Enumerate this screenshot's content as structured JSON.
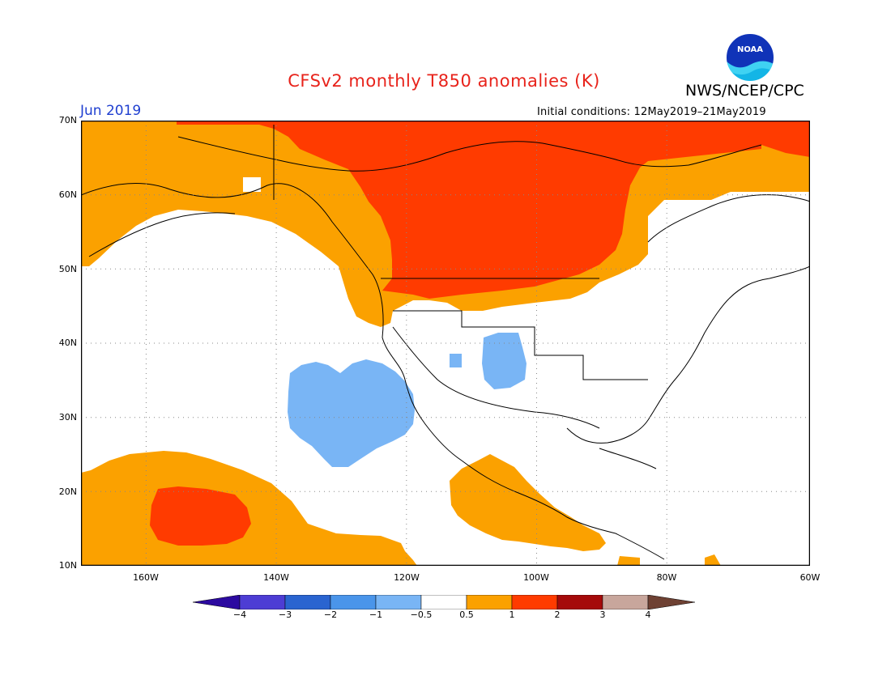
{
  "header": {
    "title": "CFSv2 monthly T850 anomalies (K)",
    "period": "Jun 2019",
    "agency": "NWS/NCEP/CPC",
    "initial_conditions": "Initial conditions: 12May2019–21May2019",
    "logo_text": "NOAA"
  },
  "map": {
    "lat_labels": [
      "70N",
      "60N",
      "50N",
      "40N",
      "30N",
      "20N",
      "10N"
    ],
    "lon_labels": [
      "160W",
      "140W",
      "120W",
      "100W",
      "80W",
      "60W"
    ],
    "extent": {
      "lon": [
        -172,
        -60
      ],
      "lat": [
        10,
        70
      ]
    }
  },
  "colorbar": {
    "labels": [
      "-4",
      "-3",
      "-2",
      "-1",
      "-0.5",
      "0.5",
      "1",
      "2",
      "3",
      "4"
    ],
    "colors": [
      "#2c0aa0",
      "#4d3dd4",
      "#2a64d0",
      "#4a95ea",
      "#79b5f5",
      "#ffffff",
      "#fba100",
      "#ff3b00",
      "#a50a0a",
      "#c8a69c",
      "#6e4133"
    ]
  },
  "legend_colors": {
    "warm_0_5_to_1": "#fba100",
    "warm_1_to_2": "#ff3b00",
    "cool_minus1_to_minus0_5": "#79b5f5"
  }
}
